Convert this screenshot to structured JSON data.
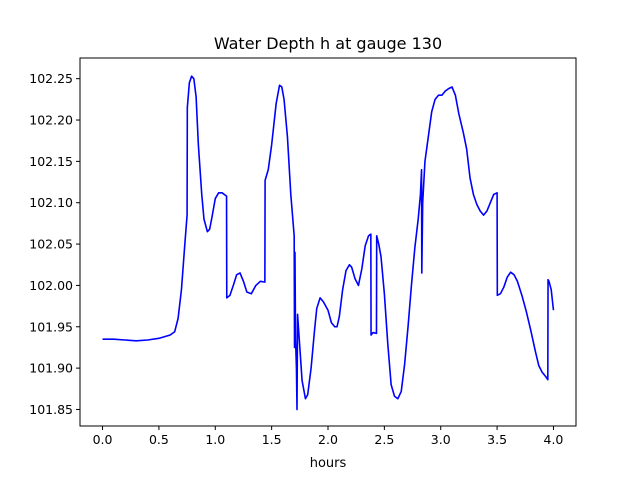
{
  "chart_data": {
    "type": "line",
    "title": "Water Depth h at gauge 130",
    "xlabel": "hours",
    "ylabel": "",
    "xlim": [
      -0.2,
      4.2
    ],
    "ylim": [
      101.83,
      102.275
    ],
    "xticks": [
      0.0,
      0.5,
      1.0,
      1.5,
      2.0,
      2.5,
      3.0,
      3.5,
      4.0
    ],
    "xtick_labels": [
      "0.0",
      "0.5",
      "1.0",
      "1.5",
      "2.0",
      "2.5",
      "3.0",
      "3.5",
      "4.0"
    ],
    "yticks": [
      101.85,
      101.9,
      101.95,
      102.0,
      102.05,
      102.1,
      102.15,
      102.2,
      102.25
    ],
    "ytick_labels": [
      "101.85",
      "101.90",
      "101.95",
      "102.00",
      "102.05",
      "102.10",
      "102.15",
      "102.20",
      "102.25"
    ],
    "grid": false,
    "legend": null,
    "series": [
      {
        "color": "#0000ff",
        "points": [
          [
            0.0,
            101.935
          ],
          [
            0.1,
            101.935
          ],
          [
            0.2,
            101.934
          ],
          [
            0.3,
            101.933
          ],
          [
            0.4,
            101.934
          ],
          [
            0.5,
            101.936
          ],
          [
            0.6,
            101.94
          ],
          [
            0.64,
            101.944
          ],
          [
            0.67,
            101.96
          ],
          [
            0.7,
            101.995
          ],
          [
            0.73,
            102.05
          ],
          [
            0.75,
            102.085
          ],
          [
            0.752,
            102.215
          ],
          [
            0.77,
            102.245
          ],
          [
            0.79,
            102.253
          ],
          [
            0.81,
            102.25
          ],
          [
            0.83,
            102.228
          ],
          [
            0.85,
            102.17
          ],
          [
            0.88,
            102.11
          ],
          [
            0.9,
            102.08
          ],
          [
            0.93,
            102.065
          ],
          [
            0.95,
            102.068
          ],
          [
            0.97,
            102.082
          ],
          [
            1.0,
            102.105
          ],
          [
            1.03,
            102.112
          ],
          [
            1.06,
            102.112
          ],
          [
            1.1,
            102.108
          ],
          [
            1.102,
            101.985
          ],
          [
            1.13,
            101.988
          ],
          [
            1.16,
            102.0
          ],
          [
            1.19,
            102.013
          ],
          [
            1.22,
            102.015
          ],
          [
            1.25,
            102.005
          ],
          [
            1.28,
            101.992
          ],
          [
            1.32,
            101.99
          ],
          [
            1.36,
            102.0
          ],
          [
            1.4,
            102.005
          ],
          [
            1.44,
            102.004
          ],
          [
            1.442,
            102.127
          ],
          [
            1.47,
            102.14
          ],
          [
            1.5,
            102.17
          ],
          [
            1.54,
            102.22
          ],
          [
            1.57,
            102.242
          ],
          [
            1.59,
            102.24
          ],
          [
            1.61,
            102.225
          ],
          [
            1.64,
            102.18
          ],
          [
            1.67,
            102.11
          ],
          [
            1.7,
            102.06
          ],
          [
            1.703,
            101.925
          ],
          [
            1.707,
            102.04
          ],
          [
            1.712,
            101.935
          ],
          [
            1.72,
            101.9
          ],
          [
            1.725,
            101.85
          ],
          [
            1.73,
            101.965
          ],
          [
            1.745,
            101.935
          ],
          [
            1.77,
            101.885
          ],
          [
            1.8,
            101.863
          ],
          [
            1.82,
            101.868
          ],
          [
            1.85,
            101.9
          ],
          [
            1.88,
            101.945
          ],
          [
            1.9,
            101.972
          ],
          [
            1.93,
            101.985
          ],
          [
            1.96,
            101.98
          ],
          [
            2.0,
            101.97
          ],
          [
            2.03,
            101.955
          ],
          [
            2.06,
            101.95
          ],
          [
            2.08,
            101.95
          ],
          [
            2.1,
            101.962
          ],
          [
            2.13,
            101.995
          ],
          [
            2.16,
            102.018
          ],
          [
            2.19,
            102.025
          ],
          [
            2.21,
            102.022
          ],
          [
            2.24,
            102.008
          ],
          [
            2.27,
            102.0
          ],
          [
            2.3,
            102.02
          ],
          [
            2.33,
            102.048
          ],
          [
            2.36,
            102.06
          ],
          [
            2.38,
            102.062
          ],
          [
            2.382,
            101.94
          ],
          [
            2.4,
            101.943
          ],
          [
            2.43,
            101.942
          ],
          [
            2.432,
            102.06
          ],
          [
            2.45,
            102.05
          ],
          [
            2.47,
            102.035
          ],
          [
            2.5,
            101.99
          ],
          [
            2.53,
            101.93
          ],
          [
            2.56,
            101.88
          ],
          [
            2.59,
            101.866
          ],
          [
            2.62,
            101.863
          ],
          [
            2.65,
            101.872
          ],
          [
            2.68,
            101.905
          ],
          [
            2.71,
            101.95
          ],
          [
            2.74,
            102.0
          ],
          [
            2.77,
            102.045
          ],
          [
            2.8,
            102.08
          ],
          [
            2.82,
            102.11
          ],
          [
            2.83,
            102.14
          ],
          [
            2.832,
            102.015
          ],
          [
            2.84,
            102.1
          ],
          [
            2.86,
            102.15
          ],
          [
            2.88,
            102.17
          ],
          [
            2.92,
            102.21
          ],
          [
            2.95,
            102.225
          ],
          [
            2.98,
            102.23
          ],
          [
            3.01,
            102.23
          ],
          [
            3.04,
            102.235
          ],
          [
            3.07,
            102.238
          ],
          [
            3.1,
            102.24
          ],
          [
            3.13,
            102.23
          ],
          [
            3.16,
            102.208
          ],
          [
            3.2,
            102.185
          ],
          [
            3.23,
            102.165
          ],
          [
            3.26,
            102.13
          ],
          [
            3.29,
            102.11
          ],
          [
            3.32,
            102.098
          ],
          [
            3.35,
            102.09
          ],
          [
            3.38,
            102.085
          ],
          [
            3.41,
            102.09
          ],
          [
            3.44,
            102.1
          ],
          [
            3.47,
            102.11
          ],
          [
            3.5,
            102.112
          ],
          [
            3.502,
            101.988
          ],
          [
            3.53,
            101.99
          ],
          [
            3.56,
            101.998
          ],
          [
            3.59,
            102.01
          ],
          [
            3.62,
            102.016
          ],
          [
            3.65,
            102.013
          ],
          [
            3.68,
            102.005
          ],
          [
            3.72,
            101.988
          ],
          [
            3.76,
            101.968
          ],
          [
            3.8,
            101.945
          ],
          [
            3.84,
            101.92
          ],
          [
            3.87,
            101.903
          ],
          [
            3.9,
            101.895
          ],
          [
            3.93,
            101.89
          ],
          [
            3.95,
            101.886
          ],
          [
            3.952,
            102.007
          ],
          [
            3.96,
            102.005
          ],
          [
            3.98,
            101.995
          ],
          [
            4.0,
            101.97
          ]
        ]
      }
    ]
  }
}
